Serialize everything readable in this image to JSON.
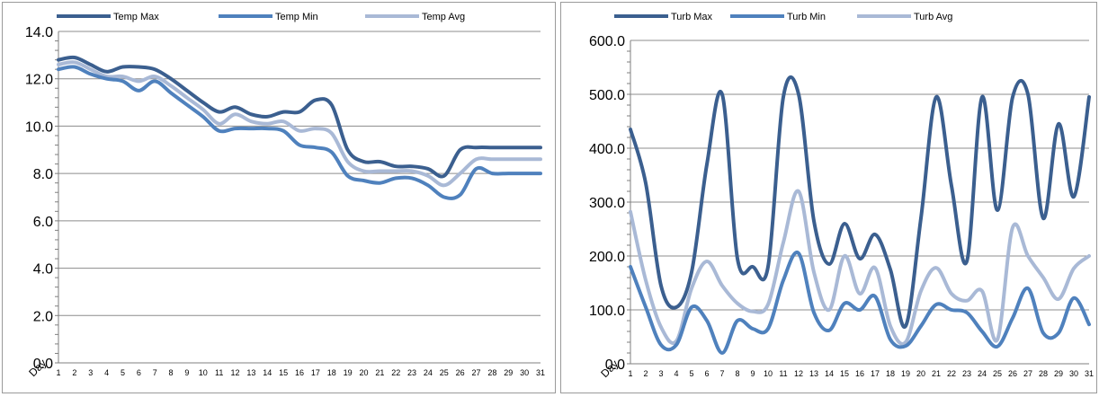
{
  "chart_data": [
    {
      "type": "line",
      "xlabel": "Day",
      "x": [
        1,
        2,
        3,
        4,
        5,
        6,
        7,
        8,
        9,
        10,
        11,
        12,
        13,
        14,
        15,
        16,
        17,
        18,
        19,
        20,
        21,
        22,
        23,
        24,
        25,
        26,
        27,
        28,
        29,
        30,
        31
      ],
      "ylim": [
        0,
        14
      ],
      "yticks": [
        "0.0",
        "2.0",
        "4.0",
        "6.0",
        "8.0",
        "10.0",
        "12.0",
        "14.0"
      ],
      "grid": true,
      "legend": "top",
      "series": [
        {
          "name": "Temp Max",
          "color": "#3b5f8f",
          "values": [
            12.8,
            12.9,
            12.6,
            12.3,
            12.5,
            12.5,
            12.4,
            12.0,
            11.5,
            11.0,
            10.6,
            10.8,
            10.5,
            10.4,
            10.6,
            10.6,
            11.1,
            10.9,
            9.0,
            8.5,
            8.5,
            8.3,
            8.3,
            8.2,
            7.9,
            9.0,
            9.1,
            9.1,
            9.1,
            9.1,
            9.1
          ]
        },
        {
          "name": "Temp Min",
          "color": "#4f81bd",
          "values": [
            12.4,
            12.5,
            12.2,
            12.0,
            11.9,
            11.5,
            11.9,
            11.4,
            10.9,
            10.4,
            9.8,
            9.9,
            9.9,
            9.9,
            9.8,
            9.2,
            9.1,
            8.9,
            7.9,
            7.7,
            7.6,
            7.8,
            7.8,
            7.5,
            7.0,
            7.1,
            8.2,
            8.0,
            8.0,
            8.0,
            8.0
          ]
        },
        {
          "name": "Temp Avg",
          "color": "#a9b9d6",
          "values": [
            12.6,
            12.7,
            12.4,
            12.1,
            12.1,
            11.9,
            12.1,
            11.7,
            11.2,
            10.7,
            10.1,
            10.5,
            10.2,
            10.1,
            10.2,
            9.8,
            9.9,
            9.7,
            8.5,
            8.1,
            8.1,
            8.1,
            8.1,
            7.9,
            7.5,
            8.0,
            8.6,
            8.6,
            8.6,
            8.6,
            8.6
          ]
        }
      ]
    },
    {
      "type": "line",
      "xlabel": "Day",
      "x": [
        1,
        2,
        3,
        4,
        5,
        6,
        7,
        8,
        9,
        10,
        11,
        12,
        13,
        14,
        15,
        16,
        17,
        18,
        19,
        20,
        21,
        22,
        23,
        24,
        25,
        26,
        27,
        28,
        29,
        30,
        31
      ],
      "ylim": [
        0,
        600
      ],
      "yticks": [
        "0.0",
        "100.0",
        "200.0",
        "300.0",
        "400.0",
        "500.0",
        "600.0"
      ],
      "grid": true,
      "legend": "top",
      "series": [
        {
          "name": "Turb Max",
          "color": "#3b5f8f",
          "values": [
            435,
            335,
            145,
            105,
            170,
            370,
            500,
            195,
            180,
            180,
            495,
            500,
            265,
            185,
            260,
            195,
            240,
            175,
            70,
            270,
            495,
            330,
            190,
            495,
            285,
            495,
            500,
            270,
            445,
            310,
            495
          ]
        },
        {
          "name": "Turb Min",
          "color": "#4f81bd",
          "values": [
            180,
            105,
            35,
            35,
            105,
            80,
            20,
            80,
            65,
            65,
            155,
            205,
            95,
            62,
            112,
            100,
            125,
            45,
            33,
            70,
            110,
            100,
            95,
            60,
            32,
            85,
            140,
            57,
            57,
            122,
            73
          ]
        },
        {
          "name": "Turb Avg",
          "color": "#a9b9d6",
          "values": [
            282,
            155,
            68,
            42,
            140,
            190,
            145,
            112,
            97,
            110,
            225,
            320,
            170,
            100,
            200,
            130,
            178,
            70,
            40,
            135,
            178,
            130,
            117,
            135,
            45,
            253,
            200,
            160,
            120,
            177,
            200
          ]
        }
      ]
    }
  ]
}
